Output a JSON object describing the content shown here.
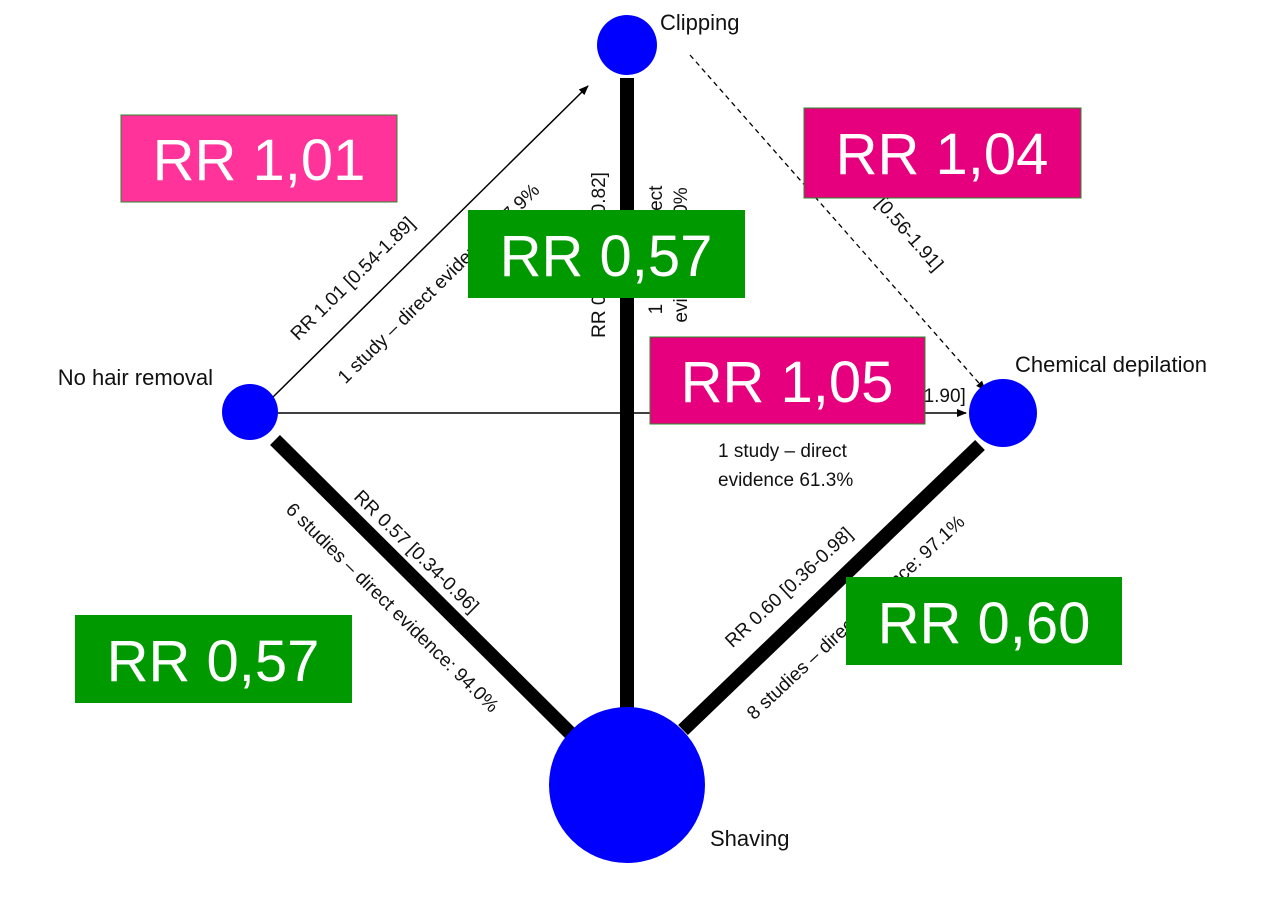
{
  "nodes": [
    {
      "label": "Clipping"
    },
    {
      "label": "No hair removal"
    },
    {
      "label": "Chemical depilation"
    },
    {
      "label": "Shaving"
    }
  ],
  "edges": [
    {
      "lines": [
        "RR 1.01 [0.54-1.89]",
        "1 study – direct evidence: 17.9%"
      ]
    },
    {
      "lines": [
        "RR 0.57 [0.40-0.82]",
        "1 study – direct",
        "evidence: 100%"
      ]
    },
    {
      "lines": [
        "RR 1.04 [0.56-1.91]"
      ]
    },
    {
      "lines": [
        "RR 1.05 [0.58-1.90]",
        "1 study – direct",
        "evidence 61.3%"
      ]
    },
    {
      "lines": [
        "RR 0.57 [0.34-0.96]",
        "6 studies – direct evidence: 94.0%"
      ]
    },
    {
      "lines": [
        "RR 0.60 [0.36-0.98]",
        "8 studies – direct evidence: 97.1%"
      ]
    }
  ],
  "highlights": [
    {
      "text": "RR 1,01"
    },
    {
      "text": "RR 1,04"
    },
    {
      "text": "RR 0,57"
    },
    {
      "text": "RR 1,05"
    },
    {
      "text": "RR 0,57"
    },
    {
      "text": "RR 0,60"
    }
  ]
}
